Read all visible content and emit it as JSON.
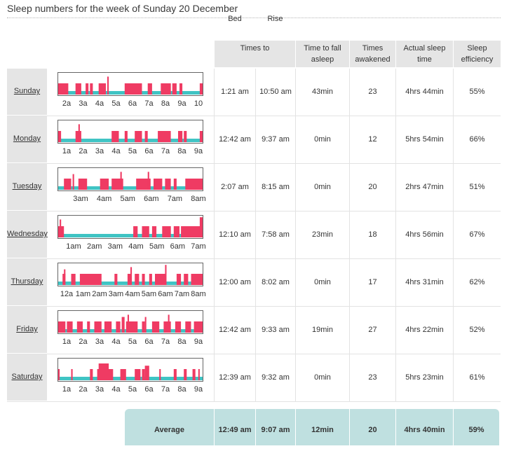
{
  "title": "Sleep numbers for the week of Sunday 20 December",
  "headers": {
    "times_to": "Times to",
    "bed": "Bed",
    "rise": "Rise",
    "fall_asleep_1": "Time to fall",
    "fall_asleep_2": "asleep",
    "awakened_1": "Times",
    "awakened_2": "awakened",
    "actual_1": "Actual sleep",
    "actual_2": "time",
    "efficiency_1": "Sleep",
    "efficiency_2": "efficiency"
  },
  "colors": {
    "awake": "#ef3b63",
    "asleep": "#40c4c4",
    "header_bg": "#e5e5e5",
    "average_bg": "#bfe0e0"
  },
  "days": [
    {
      "day": "Sunday",
      "bed": "1:21 am",
      "rise": "10:50 am",
      "fall_asleep": "43min",
      "awakened": "23",
      "actual": "4hrs 44min",
      "efficiency": "55%",
      "ticks": [
        "2a",
        "3a",
        "4a",
        "5a",
        "6a",
        "7a",
        "8a",
        "9a",
        "10"
      ],
      "awake_segments": [
        [
          0,
          0.07,
          0.5
        ],
        [
          0.12,
          0.16,
          0.5
        ],
        [
          0.19,
          0.21,
          0.5
        ],
        [
          0.22,
          0.24,
          0.5
        ],
        [
          0.28,
          0.33,
          0.5
        ],
        [
          0.34,
          0.35,
          0.8
        ],
        [
          0.46,
          0.58,
          0.5
        ],
        [
          0.62,
          0.65,
          0.5
        ],
        [
          0.71,
          0.78,
          0.5
        ],
        [
          0.79,
          0.82,
          0.5
        ],
        [
          0.84,
          0.86,
          0.5
        ],
        [
          0.98,
          1,
          0.5
        ]
      ]
    },
    {
      "day": "Monday",
      "bed": "12:42 am",
      "rise": "9:37 am",
      "fall_asleep": "0min",
      "awakened": "12",
      "actual": "5hrs 54min",
      "efficiency": "66%",
      "ticks": [
        "1a",
        "2a",
        "3a",
        "4a",
        "5a",
        "6a",
        "7a",
        "8a",
        "9a"
      ],
      "awake_segments": [
        [
          0,
          0.02,
          0.5
        ],
        [
          0.12,
          0.16,
          0.5
        ],
        [
          0.14,
          0.15,
          0.8
        ],
        [
          0.37,
          0.42,
          0.5
        ],
        [
          0.46,
          0.48,
          0.5
        ],
        [
          0.53,
          0.58,
          0.5
        ],
        [
          0.6,
          0.62,
          0.5
        ],
        [
          0.69,
          0.78,
          0.5
        ],
        [
          0.83,
          0.86,
          0.5
        ],
        [
          0.87,
          0.89,
          0.5
        ],
        [
          0.98,
          1,
          0.5
        ]
      ]
    },
    {
      "day": "Tuesday",
      "bed": "2:07 am",
      "rise": "8:15 am",
      "fall_asleep": "0min",
      "awakened": "20",
      "actual": "2hrs 47min",
      "efficiency": "51%",
      "ticks": [
        "3am",
        "4am",
        "5am",
        "6am",
        "7am",
        "8am"
      ],
      "awake_segments": [
        [
          0.04,
          0.09,
          0.5
        ],
        [
          0.1,
          0.11,
          0.7
        ],
        [
          0.14,
          0.2,
          0.5
        ],
        [
          0.29,
          0.35,
          0.5
        ],
        [
          0.37,
          0.45,
          0.5
        ],
        [
          0.43,
          0.44,
          0.8
        ],
        [
          0.54,
          0.64,
          0.5
        ],
        [
          0.62,
          0.63,
          0.8
        ],
        [
          0.66,
          0.72,
          0.5
        ],
        [
          0.74,
          0.78,
          0.5
        ],
        [
          0.8,
          0.82,
          0.5
        ],
        [
          0.88,
          1,
          0.5
        ]
      ]
    },
    {
      "day": "Wednesday",
      "bed": "12:10 am",
      "rise": "7:58 am",
      "fall_asleep": "23min",
      "awakened": "18",
      "actual": "4hrs 56min",
      "efficiency": "67%",
      "ticks": [
        "1am",
        "2am",
        "3am",
        "4am",
        "5am",
        "6am",
        "7am"
      ],
      "awake_segments": [
        [
          0,
          0.04,
          0.5
        ],
        [
          0.01,
          0.02,
          0.8
        ],
        [
          0.52,
          0.55,
          0.5
        ],
        [
          0.58,
          0.63,
          0.5
        ],
        [
          0.65,
          0.68,
          0.5
        ],
        [
          0.72,
          0.78,
          0.5
        ],
        [
          0.8,
          0.84,
          0.5
        ],
        [
          0.85,
          1,
          0.5
        ],
        [
          0.98,
          1,
          0.9
        ]
      ]
    },
    {
      "day": "Thursday",
      "bed": "12:00 am",
      "rise": "8:02 am",
      "fall_asleep": "0min",
      "awakened": "17",
      "actual": "4hrs 31min",
      "efficiency": "62%",
      "ticks": [
        "12a",
        "1am",
        "2am",
        "3am",
        "4am",
        "5am",
        "6am",
        "7am",
        "8am"
      ],
      "awake_segments": [
        [
          0.03,
          0.05,
          0.5
        ],
        [
          0.04,
          0.05,
          0.7
        ],
        [
          0.09,
          0.12,
          0.5
        ],
        [
          0.15,
          0.3,
          0.5
        ],
        [
          0.39,
          0.41,
          0.5
        ],
        [
          0.48,
          0.5,
          0.5
        ],
        [
          0.5,
          0.51,
          0.8
        ],
        [
          0.53,
          0.56,
          0.5
        ],
        [
          0.58,
          0.6,
          0.5
        ],
        [
          0.63,
          0.65,
          0.5
        ],
        [
          0.67,
          0.75,
          0.5
        ],
        [
          0.74,
          0.75,
          0.9
        ],
        [
          0.82,
          0.85,
          0.5
        ],
        [
          0.87,
          0.9,
          0.5
        ],
        [
          0.92,
          1,
          0.5
        ]
      ]
    },
    {
      "day": "Friday",
      "bed": "12:42 am",
      "rise": "9:33 am",
      "fall_asleep": "19min",
      "awakened": "27",
      "actual": "4hrs 22min",
      "efficiency": "52%",
      "ticks": [
        "1a",
        "2a",
        "3a",
        "4a",
        "5a",
        "6a",
        "7a",
        "8a",
        "9a"
      ],
      "awake_segments": [
        [
          0,
          0.05,
          0.5
        ],
        [
          0.06,
          0.1,
          0.5
        ],
        [
          0.13,
          0.17,
          0.5
        ],
        [
          0.2,
          0.22,
          0.5
        ],
        [
          0.25,
          0.3,
          0.5
        ],
        [
          0.32,
          0.37,
          0.5
        ],
        [
          0.4,
          0.43,
          0.5
        ],
        [
          0.44,
          0.46,
          0.7
        ],
        [
          0.47,
          0.55,
          0.5
        ],
        [
          0.48,
          0.49,
          0.8
        ],
        [
          0.58,
          0.6,
          0.5
        ],
        [
          0.6,
          0.61,
          0.7
        ],
        [
          0.65,
          0.7,
          0.5
        ],
        [
          0.73,
          0.78,
          0.5
        ],
        [
          0.76,
          0.77,
          0.8
        ],
        [
          0.81,
          0.85,
          0.5
        ],
        [
          0.88,
          0.92,
          0.5
        ],
        [
          0.94,
          1,
          0.5
        ]
      ]
    },
    {
      "day": "Saturday",
      "bed": "12:39 am",
      "rise": "9:32 am",
      "fall_asleep": "0min",
      "awakened": "23",
      "actual": "5hrs 23min",
      "efficiency": "61%",
      "ticks": [
        "1a",
        "2a",
        "3a",
        "4a",
        "5a",
        "6a",
        "7a",
        "8a",
        "9a"
      ],
      "awake_segments": [
        [
          0,
          0.01,
          0.5
        ],
        [
          0.09,
          0.1,
          0.5
        ],
        [
          0.22,
          0.24,
          0.5
        ],
        [
          0.27,
          0.38,
          0.5
        ],
        [
          0.28,
          0.35,
          0.75
        ],
        [
          0.43,
          0.47,
          0.5
        ],
        [
          0.53,
          0.57,
          0.5
        ],
        [
          0.58,
          0.6,
          0.5
        ],
        [
          0.6,
          0.63,
          0.65
        ],
        [
          0.7,
          0.71,
          0.5
        ],
        [
          0.8,
          0.82,
          0.5
        ],
        [
          0.87,
          0.89,
          0.5
        ],
        [
          0.93,
          0.95,
          0.5
        ],
        [
          0.97,
          0.98,
          0.5
        ]
      ]
    }
  ],
  "average": {
    "label": "Average",
    "bed": "12:49 am",
    "rise": "9:07 am",
    "fall_asleep": "12min",
    "awakened": "20",
    "actual": "4hrs 40min",
    "efficiency": "59%"
  }
}
